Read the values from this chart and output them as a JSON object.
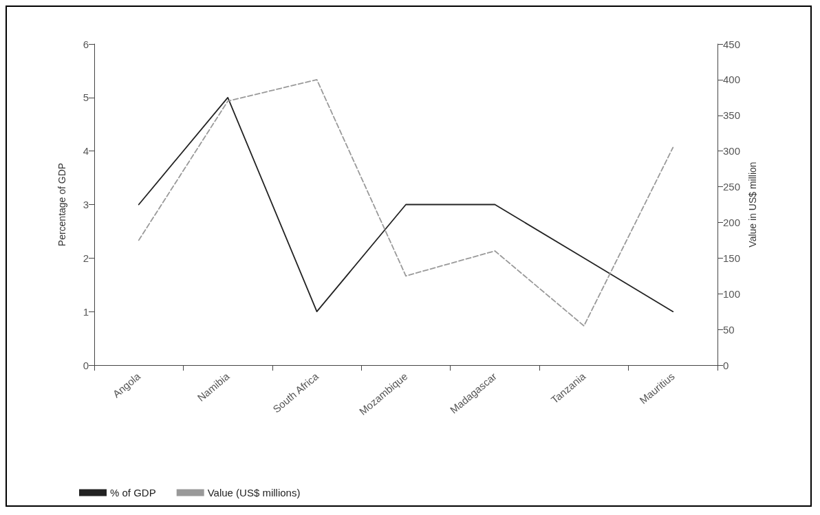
{
  "chart_data": {
    "type": "line",
    "ylabel": "Percentage of GDP",
    "y2label": "Value in US$ million",
    "categories": [
      "Angola",
      "Namibia",
      "South Africa",
      "Mozambique",
      "Madagascar",
      "Tanzania",
      "Mauritius"
    ],
    "series": [
      {
        "name": "% of GDP",
        "color": "#222222",
        "line_style": "solid",
        "values": [
          3,
          5,
          1,
          3,
          3,
          2,
          1
        ]
      },
      {
        "name": "Value (US$ millions)",
        "color": "#999999",
        "line_style": "dashed",
        "axis": "y2",
        "values": [
          175,
          370,
          400,
          125,
          160,
          55,
          305
        ]
      }
    ],
    "ylim": [
      0,
      6
    ],
    "yticks": [
      0,
      1,
      2,
      3,
      4,
      5,
      6
    ],
    "y2lim": [
      0,
      450
    ],
    "y2ticks": [
      0,
      50,
      100,
      150,
      200,
      250,
      300,
      350,
      400,
      450
    ],
    "grid": false,
    "legend": "bottom",
    "marker": "none"
  }
}
